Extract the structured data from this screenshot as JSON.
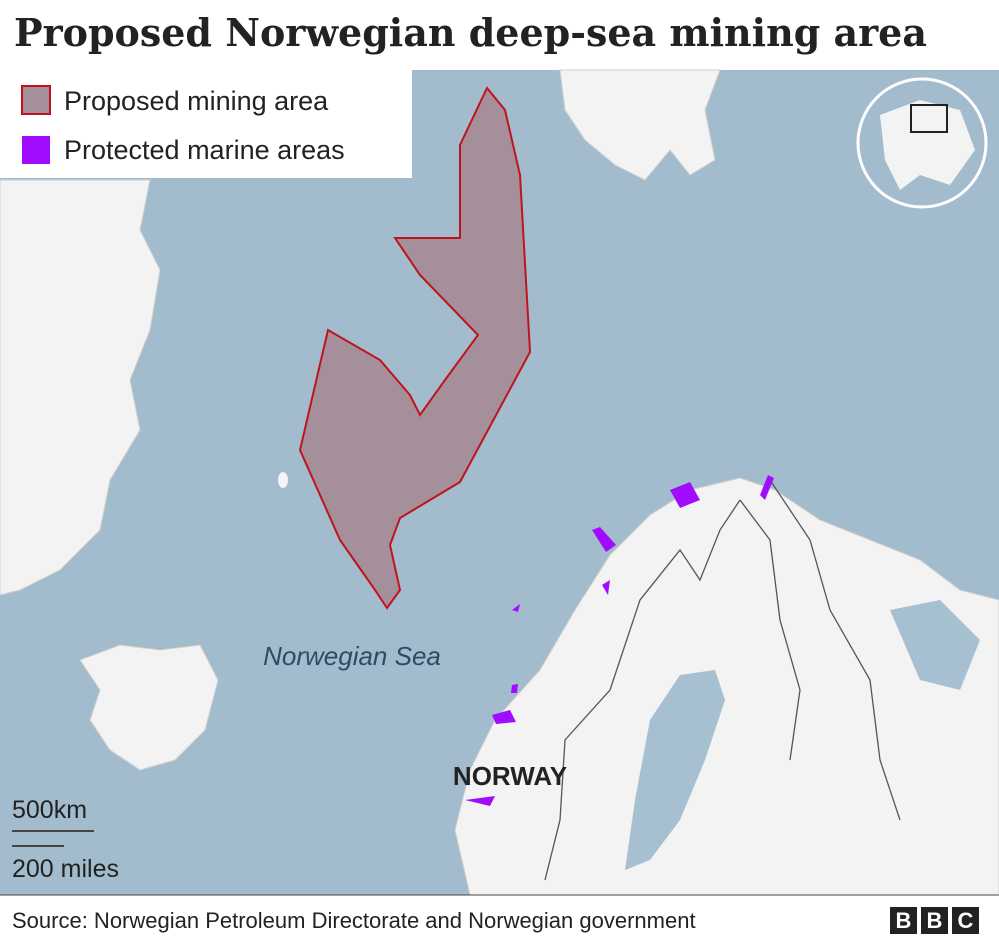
{
  "header": {
    "title": "Proposed Norwegian deep-sea mining area"
  },
  "legend": {
    "items": [
      {
        "label": "Proposed mining area",
        "color": "#a58f9b"
      },
      {
        "label": "Protected marine areas",
        "color": "#a10cff"
      }
    ]
  },
  "map": {
    "labels": {
      "sea": "Norwegian Sea",
      "country": "NORWAY"
    },
    "scale": {
      "km": "500km",
      "miles": "200 miles"
    }
  },
  "footer": {
    "source": "Source: Norwegian Petroleum Directorate and Norwegian government",
    "logo": [
      "B",
      "B",
      "C"
    ]
  }
}
